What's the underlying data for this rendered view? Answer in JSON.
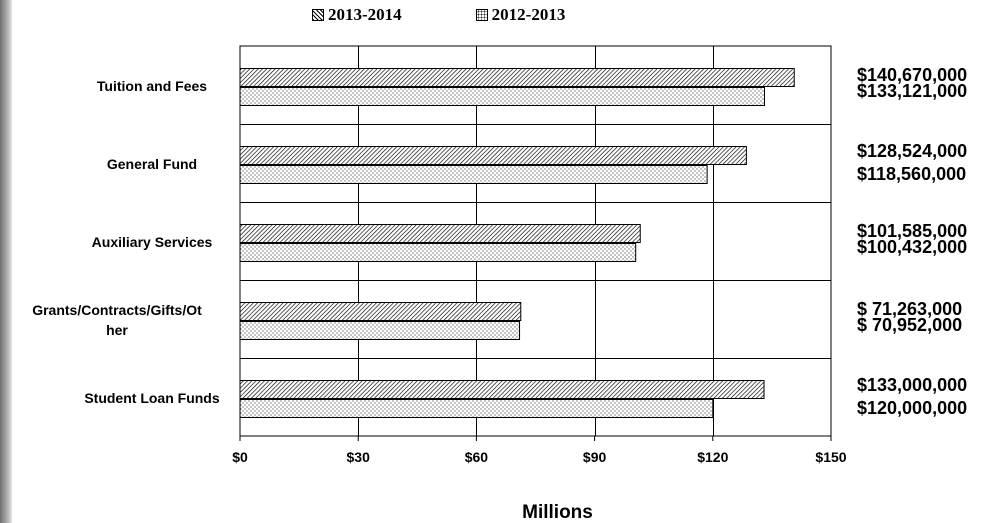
{
  "chart_data": {
    "type": "bar",
    "orientation": "horizontal",
    "categories": [
      "Tuition and Fees",
      "General Fund",
      "Auxiliary Services",
      "Grants/Contracts/Gifts/Other",
      "Student Loan Funds"
    ],
    "category_display": [
      [
        "Tuition and Fees"
      ],
      [
        "General Fund"
      ],
      [
        "Auxiliary Services"
      ],
      [
        "Grants/Contracts/Gifts/Ot",
        "her"
      ],
      [
        "Student Loan Funds"
      ]
    ],
    "series": [
      {
        "name": "2013-2014",
        "pattern": "diagonal-hatch",
        "values": [
          140.67,
          128.524,
          101.585,
          71.263,
          133.0
        ],
        "labels": [
          "$140,670,000",
          "$128,524,000",
          "$101,585,000",
          "$ 71,263,000",
          "$133,000,000"
        ]
      },
      {
        "name": "2012-2013",
        "pattern": "dotted",
        "values": [
          133.121,
          118.56,
          100.432,
          70.952,
          120.0
        ],
        "labels": [
          "$133,121,000",
          "$118,560,000",
          "$100,432,000",
          "$ 70,952,000",
          "$120,000,000"
        ]
      }
    ],
    "xlabel": "Millions",
    "xlim": [
      0,
      150
    ],
    "xticks": [
      0,
      30,
      60,
      90,
      120,
      150
    ],
    "xtick_labels": [
      "$0",
      "$30",
      "$60",
      "$90",
      "$120",
      "$150"
    ],
    "grid": true,
    "legend_position": "top"
  }
}
